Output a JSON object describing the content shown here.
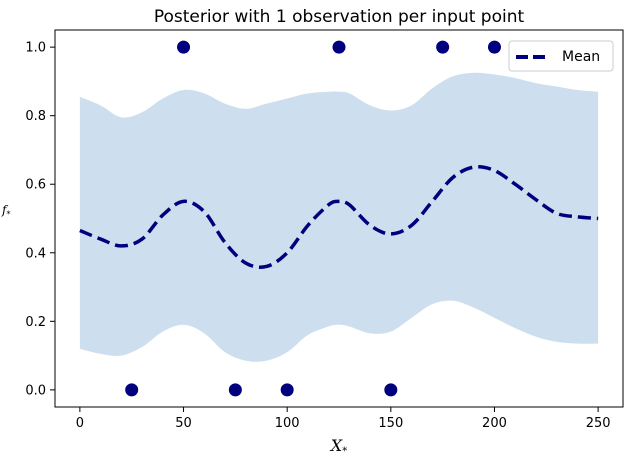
{
  "chart_data": {
    "type": "line",
    "title": "Posterior with 1 observation per input point",
    "xlabel": "X*",
    "ylabel": "f*",
    "xlim": [
      -12,
      262
    ],
    "ylim": [
      -0.05,
      1.05
    ],
    "xticks": [
      0,
      50,
      100,
      150,
      200,
      250
    ],
    "yticks": [
      0.0,
      0.2,
      0.4,
      0.6,
      0.8,
      1.0
    ],
    "grid": false,
    "legend_position": "top-right",
    "colors": {
      "mean": "#00007f",
      "band": "#cddfee",
      "points": "#00007f"
    },
    "mean": {
      "name": "Mean",
      "x": [
        0,
        10,
        20,
        30,
        40,
        50,
        60,
        70,
        80,
        90,
        100,
        110,
        120,
        125,
        130,
        140,
        150,
        160,
        170,
        180,
        190,
        200,
        210,
        220,
        230,
        240,
        250
      ],
      "y": [
        0.465,
        0.44,
        0.42,
        0.44,
        0.51,
        0.55,
        0.52,
        0.43,
        0.37,
        0.36,
        0.4,
        0.48,
        0.54,
        0.55,
        0.54,
        0.48,
        0.455,
        0.48,
        0.55,
        0.62,
        0.65,
        0.64,
        0.6,
        0.555,
        0.515,
        0.505,
        0.5
      ]
    },
    "band": {
      "x": [
        0,
        10,
        20,
        30,
        40,
        50,
        60,
        70,
        80,
        90,
        100,
        110,
        120,
        125,
        130,
        140,
        150,
        160,
        170,
        180,
        190,
        200,
        210,
        220,
        230,
        240,
        250
      ],
      "lower": [
        0.12,
        0.105,
        0.1,
        0.125,
        0.17,
        0.19,
        0.165,
        0.11,
        0.085,
        0.085,
        0.11,
        0.16,
        0.185,
        0.19,
        0.185,
        0.165,
        0.17,
        0.21,
        0.25,
        0.26,
        0.24,
        0.21,
        0.18,
        0.155,
        0.14,
        0.135,
        0.135
      ],
      "upper": [
        0.855,
        0.83,
        0.795,
        0.81,
        0.85,
        0.875,
        0.865,
        0.835,
        0.82,
        0.835,
        0.85,
        0.865,
        0.87,
        0.87,
        0.865,
        0.83,
        0.815,
        0.83,
        0.88,
        0.915,
        0.925,
        0.92,
        0.91,
        0.895,
        0.885,
        0.875,
        0.87
      ]
    },
    "observations": {
      "x": [
        25,
        50,
        75,
        100,
        125,
        150,
        175,
        200
      ],
      "y": [
        0,
        1,
        0,
        0,
        1,
        0,
        1,
        1
      ]
    }
  }
}
